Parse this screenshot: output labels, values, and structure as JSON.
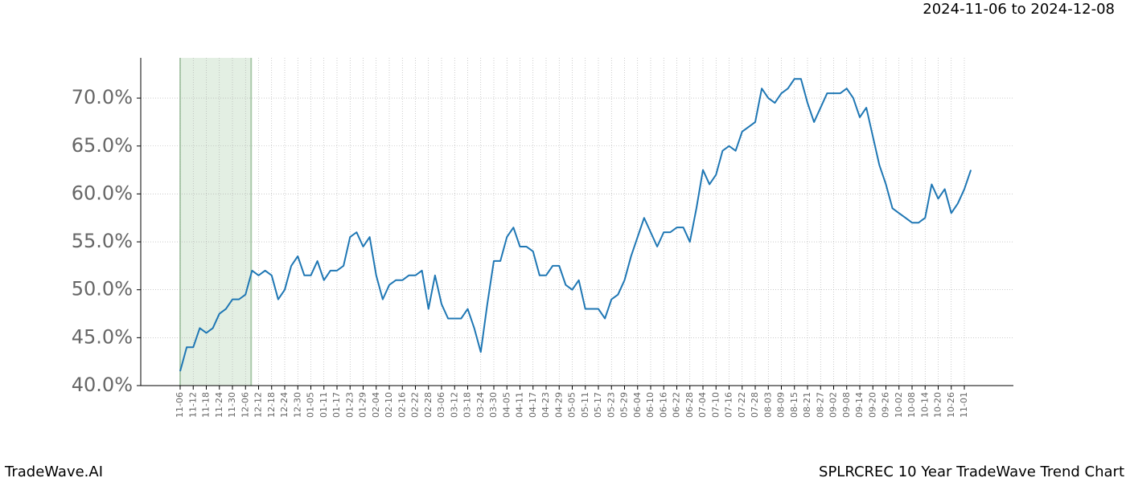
{
  "chart_data": {
    "type": "line",
    "date_range": "2024-11-06 to 2024-12-08",
    "footer_left": "TradeWave.AI",
    "footer_right": "SPLRCREC 10 Year TradeWave Trend Chart",
    "categories": [
      "11-06",
      null,
      "11-12",
      null,
      "11-18",
      null,
      "11-24",
      null,
      "11-30",
      null,
      "12-06",
      null,
      "12-12",
      null,
      "12-18",
      null,
      "12-24",
      null,
      "12-30",
      null,
      "01-05",
      null,
      "01-11",
      null,
      "01-17",
      null,
      "01-23",
      null,
      "01-29",
      null,
      "02-04",
      null,
      "02-10",
      null,
      "02-16",
      null,
      "02-22",
      null,
      "02-28",
      null,
      "03-06",
      null,
      "03-12",
      null,
      "03-18",
      null,
      "03-24",
      null,
      "03-30",
      null,
      "04-05",
      null,
      "04-11",
      null,
      "04-17",
      null,
      "04-23",
      null,
      "04-29",
      null,
      "05-05",
      null,
      "05-11",
      null,
      "05-17",
      null,
      "05-23",
      null,
      "05-29",
      null,
      "06-04",
      null,
      "06-10",
      null,
      "06-16",
      null,
      "06-22",
      null,
      "06-28",
      null,
      "07-04",
      null,
      "07-10",
      null,
      "07-16",
      null,
      "07-22",
      null,
      "07-28",
      null,
      "08-03",
      null,
      "08-09",
      null,
      "08-15",
      null,
      "08-21",
      null,
      "08-27",
      null,
      "09-02",
      null,
      "09-08",
      null,
      "09-14",
      null,
      "09-20",
      null,
      "09-26",
      null,
      "10-02",
      null,
      "10-08",
      null,
      "10-14",
      null,
      "10-20",
      null,
      "10-26",
      null,
      "11-01",
      null
    ],
    "series": [
      {
        "color": "#1f77b4",
        "values": [
          41.5,
          44,
          44,
          46,
          45.5,
          46,
          47.5,
          48,
          49,
          49,
          49.5,
          52,
          51.5,
          52,
          51.5,
          49,
          50,
          52.5,
          53.5,
          51.5,
          51.5,
          53,
          51,
          52,
          52,
          52.5,
          55.5,
          56,
          54.5,
          55.5,
          51.5,
          49,
          50.5,
          51,
          51,
          51.5,
          51.5,
          52,
          48,
          51.5,
          48.5,
          47,
          47,
          47,
          48,
          46,
          43.5,
          48.5,
          53,
          53,
          55.5,
          56.5,
          54.5,
          54.5,
          54,
          51.5,
          51.5,
          52.5,
          52.5,
          50.5,
          50,
          51,
          48,
          48,
          48,
          47,
          49,
          49.5,
          51,
          53.5,
          55.5,
          57.5,
          56,
          54.5,
          56,
          56,
          56.5,
          56.5,
          55,
          58.5,
          62.5,
          61,
          62,
          64.5,
          65,
          64.5,
          66.5,
          67,
          67.5,
          71,
          70,
          69.5,
          70.5,
          71,
          72,
          72,
          69.5,
          67.5,
          69,
          70.5,
          70.5,
          70.5,
          71,
          70,
          68,
          69,
          66,
          63,
          61,
          58.5,
          58,
          57.5,
          57,
          57,
          57.5,
          61,
          59.5,
          60.5,
          58,
          59,
          60.5,
          62.5
        ]
      }
    ],
    "shade": [
      "11-06",
      "12-06"
    ],
    "shade_color": "#c8e0c8",
    "ylim": [
      40,
      74.2
    ],
    "yticks": [
      {
        "value": 40,
        "label": "40.0%"
      },
      {
        "value": 45,
        "label": "45.0%"
      },
      {
        "value": 50,
        "label": "50.0%"
      },
      {
        "value": 55,
        "label": "55.0%"
      },
      {
        "value": 60,
        "label": "60.0%"
      },
      {
        "value": 65,
        "label": "65.0%"
      },
      {
        "value": 70,
        "label": "70.0%"
      }
    ],
    "grid": true
  }
}
